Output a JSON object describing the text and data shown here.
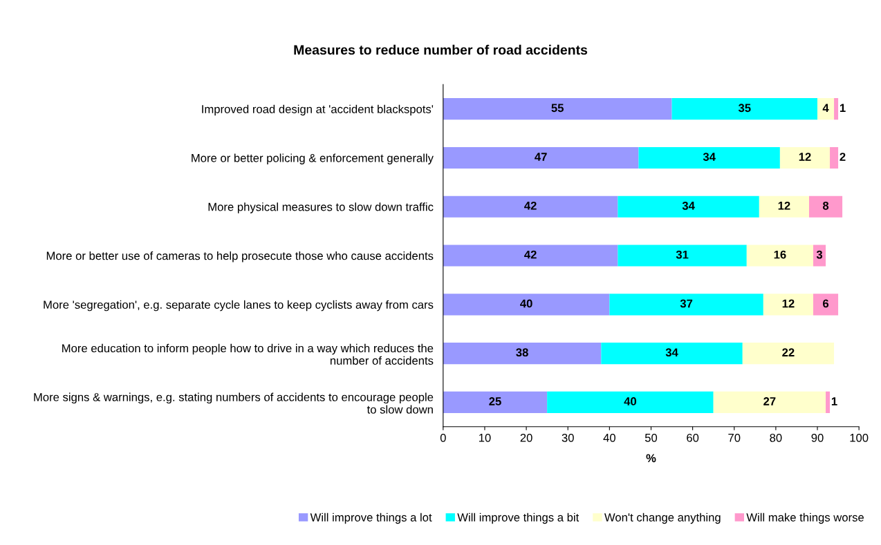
{
  "chart_data": {
    "type": "bar",
    "orientation": "horizontal",
    "stacked": true,
    "title": "Measures to reduce number of road accidents",
    "xlabel": "%",
    "categories": [
      "Improved road design at 'accident blackspots'",
      "More or better policing & enforcement generally",
      "More physical measures to slow down traffic",
      "More or better use of cameras to help prosecute those who cause accidents",
      "More 'segregation', e.g. separate cycle lanes to keep cyclists away from cars",
      "More education to inform people how to drive in a way which reduces the\nnumber of accidents",
      "More signs & warnings, e.g. stating numbers of accidents to encourage people\nto slow down"
    ],
    "series": [
      {
        "name": "Will improve things a lot",
        "color": "#9999ff",
        "values": [
          55,
          47,
          42,
          42,
          40,
          38,
          25
        ]
      },
      {
        "name": "Will improve things a bit",
        "color": "#00ffff",
        "values": [
          35,
          34,
          34,
          31,
          37,
          34,
          40
        ]
      },
      {
        "name": "Won't change anything",
        "color": "#ffffcc",
        "values": [
          4,
          12,
          12,
          16,
          12,
          22,
          27
        ]
      },
      {
        "name": "Will make things worse",
        "color": "#ff99cc",
        "values": [
          1,
          2,
          8,
          3,
          6,
          null,
          1
        ]
      }
    ],
    "xlim": [
      0,
      100
    ],
    "xticks": [
      0,
      10,
      20,
      30,
      40,
      50,
      60,
      70,
      80,
      90,
      100
    ],
    "data_labels": true,
    "grid": false,
    "legend": "bottom"
  }
}
